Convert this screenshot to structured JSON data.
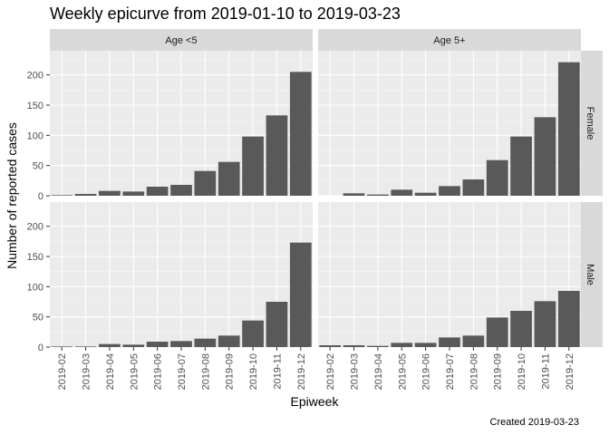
{
  "chart_data": {
    "type": "bar",
    "title": "Weekly epicurve from 2019-01-10 to 2019-03-23",
    "xlabel": "Epiweek",
    "ylabel": "Number of reported cases",
    "caption": "Created 2019-03-23",
    "categories": [
      "2019-02",
      "2019-03",
      "2019-04",
      "2019-05",
      "2019-06",
      "2019-07",
      "2019-08",
      "2019-09",
      "2019-10",
      "2019-11",
      "2019-12"
    ],
    "ylim": [
      0,
      240
    ],
    "yticks": [
      0,
      50,
      100,
      150,
      200
    ],
    "facet_cols": [
      "Age <5",
      "Age 5+"
    ],
    "facet_rows": [
      "Female",
      "Male"
    ],
    "grid": true,
    "bar_color": "#595959",
    "panel_background": "#ebebeb",
    "strip_background": "#d9d9d9",
    "panels": [
      {
        "row": "Female",
        "col": "Age <5",
        "values": [
          1,
          3,
          8,
          7,
          15,
          18,
          41,
          56,
          98,
          133,
          205
        ]
      },
      {
        "row": "Female",
        "col": "Age 5+",
        "values": [
          0,
          4,
          2,
          10,
          5,
          16,
          27,
          59,
          98,
          130,
          221
        ]
      },
      {
        "row": "Male",
        "col": "Age <5",
        "values": [
          1,
          1,
          5,
          4,
          9,
          10,
          14,
          19,
          44,
          75,
          173
        ]
      },
      {
        "row": "Male",
        "col": "Age 5+",
        "values": [
          3,
          3,
          2,
          7,
          7,
          16,
          19,
          49,
          60,
          76,
          93
        ]
      }
    ]
  }
}
